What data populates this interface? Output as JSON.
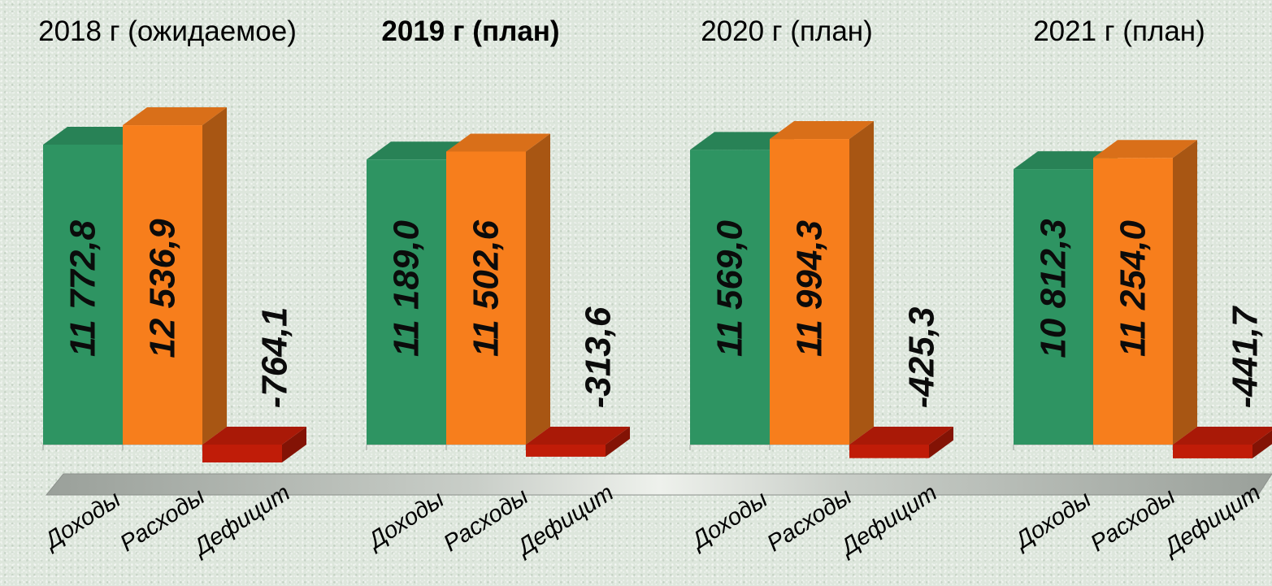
{
  "chart_data": [
    {
      "type": "bar",
      "title": "2018 г (ожидаемое)",
      "title_bold": false,
      "categories": [
        "Доходы",
        "Расходы",
        "Дефицит"
      ],
      "values": [
        11772.8,
        12536.9,
        -764.1
      ],
      "value_labels": [
        "11 772,8",
        "12 536,9",
        "-764,1"
      ],
      "colors": [
        "#2e9462",
        "#f77e1c",
        "#c01c08"
      ]
    },
    {
      "type": "bar",
      "title": "2019 г (план)",
      "title_bold": true,
      "categories": [
        "Доходы",
        "Расходы",
        "Дефицит"
      ],
      "values": [
        11189.0,
        11502.6,
        -313.6
      ],
      "value_labels": [
        "11 189,0",
        "11 502,6",
        "-313,6"
      ],
      "colors": [
        "#2e9462",
        "#f77e1c",
        "#c01c08"
      ]
    },
    {
      "type": "bar",
      "title": "2020 г (план)",
      "title_bold": false,
      "categories": [
        "Доходы",
        "Расходы",
        "Дефицит"
      ],
      "values": [
        11569.0,
        11994.3,
        -425.3
      ],
      "value_labels": [
        "11 569,0",
        "11 994,3",
        "-425,3"
      ],
      "colors": [
        "#2e9462",
        "#f77e1c",
        "#c01c08"
      ]
    },
    {
      "type": "bar",
      "title": "2021 г (план)",
      "title_bold": false,
      "categories": [
        "Доходы",
        "Расходы",
        "Дефицит"
      ],
      "values": [
        10812.3,
        11254.0,
        -441.7
      ],
      "value_labels": [
        "10 812,3",
        "11 254,0",
        "-441,7"
      ],
      "colors": [
        "#2e9462",
        "#f77e1c",
        "#c01c08"
      ]
    }
  ]
}
